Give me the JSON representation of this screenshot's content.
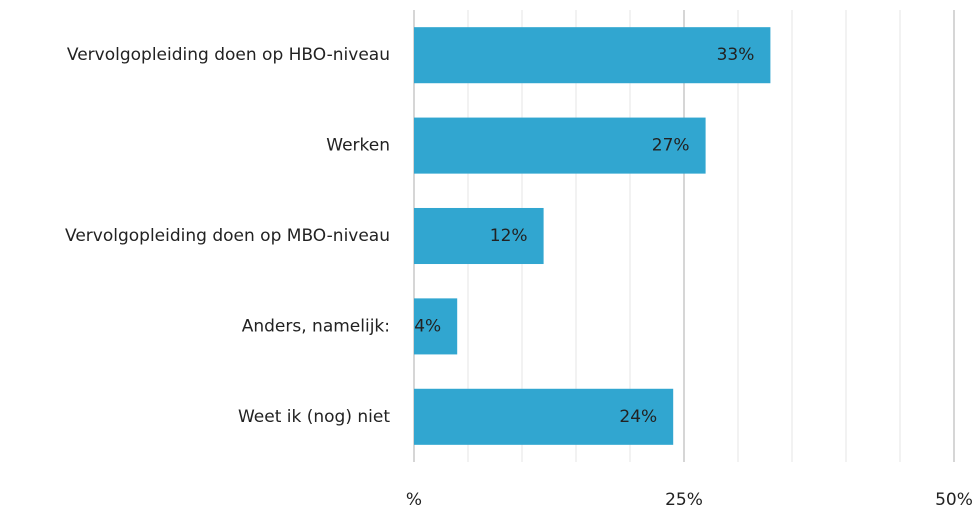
{
  "chart_data": {
    "type": "hbar",
    "categories": [
      "Vervolgopleiding doen op HBO-niveau",
      "Werken",
      "Vervolgopleiding doen op MBO-niveau",
      "Anders, namelijk:",
      "Weet ik (nog) niet"
    ],
    "values": [
      33,
      27,
      12,
      4,
      24
    ],
    "value_labels": [
      "33%",
      "27%",
      "12%",
      "4%",
      "24%"
    ],
    "color": "#31a6d0",
    "xlim": [
      0,
      50
    ],
    "xticks": [
      {
        "value": 0,
        "label": "%"
      },
      {
        "value": 25,
        "label": "25%"
      },
      {
        "value": 50,
        "label": "50%"
      }
    ],
    "minor_xticks": [
      5,
      10,
      15,
      20,
      30,
      35,
      40,
      45
    ],
    "grid": true
  }
}
